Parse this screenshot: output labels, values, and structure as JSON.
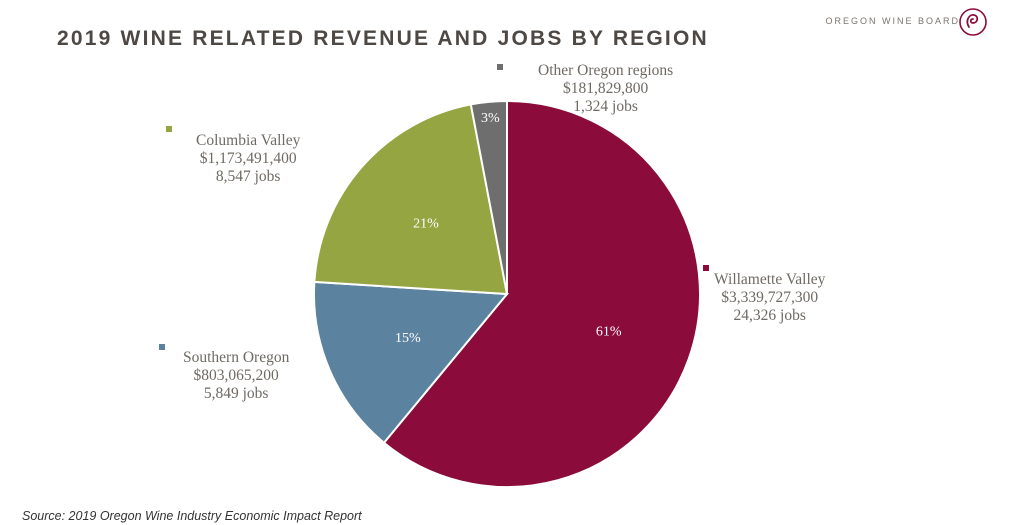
{
  "brand": {
    "name": "OREGON WINE BOARD",
    "logo_icon": "wine-swirl-logo-icon"
  },
  "source": "Source: 2019 Oregon Wine Industry Economic Impact Report",
  "chart_data": {
    "type": "pie",
    "title": "2019 WINE RELATED REVENUE AND JOBS BY REGION",
    "start_angle_deg": 0,
    "direction": "clockwise",
    "slices": [
      {
        "label": "Willamette Valley",
        "value": 61,
        "pct_label": "61%",
        "revenue": "$3,339,727,300",
        "jobs": "24,326 jobs",
        "color": "#8b0c3a"
      },
      {
        "label": "Southern Oregon",
        "value": 15,
        "pct_label": "15%",
        "revenue": "$803,065,200",
        "jobs": "5,849 jobs",
        "color": "#5b829f"
      },
      {
        "label": "Columbia Valley",
        "value": 21,
        "pct_label": "21%",
        "revenue": "$1,173,491,400",
        "jobs": "8,547 jobs",
        "color": "#95a542"
      },
      {
        "label": "Other Oregon regions",
        "value": 3,
        "pct_label": "3%",
        "revenue": "$181,829,800",
        "jobs": "1,324 jobs",
        "color": "#6e6e6e"
      }
    ]
  }
}
